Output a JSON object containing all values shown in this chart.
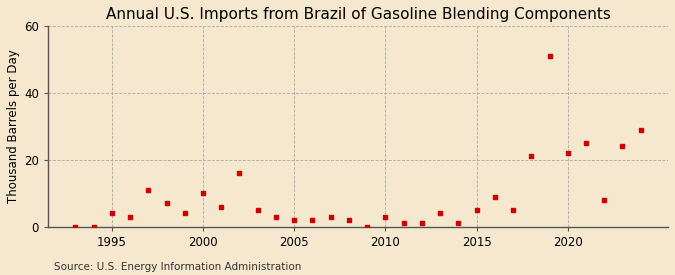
{
  "title": "Annual U.S. Imports from Brazil of Gasoline Blending Components",
  "ylabel": "Thousand Barrels per Day",
  "source": "Source: U.S. Energy Information Administration",
  "years": [
    1993,
    1994,
    1995,
    1996,
    1997,
    1998,
    1999,
    2000,
    2001,
    2002,
    2003,
    2004,
    2005,
    2006,
    2007,
    2008,
    2009,
    2010,
    2011,
    2012,
    2013,
    2014,
    2015,
    2016,
    2017,
    2018,
    2019,
    2020,
    2021,
    2022,
    2023,
    2024
  ],
  "values": [
    0,
    0,
    4,
    3,
    11,
    7,
    4,
    10,
    6,
    16,
    5,
    3,
    2,
    2,
    3,
    2,
    0,
    3,
    1,
    1,
    4,
    1,
    5,
    9,
    5,
    21,
    51,
    22,
    25,
    8,
    24,
    29
  ],
  "marker_color": "#cc0000",
  "bg_color": "#f5e8ce",
  "grid_color": "#aaaaaa",
  "spine_color": "#555555",
  "ylim": [
    0,
    60
  ],
  "yticks": [
    0,
    20,
    40,
    60
  ],
  "xticks": [
    1995,
    2000,
    2005,
    2010,
    2015,
    2020
  ],
  "xlim": [
    1991.5,
    2025.5
  ],
  "title_fontsize": 11,
  "ylabel_fontsize": 8.5,
  "tick_fontsize": 8.5,
  "source_fontsize": 7.5
}
